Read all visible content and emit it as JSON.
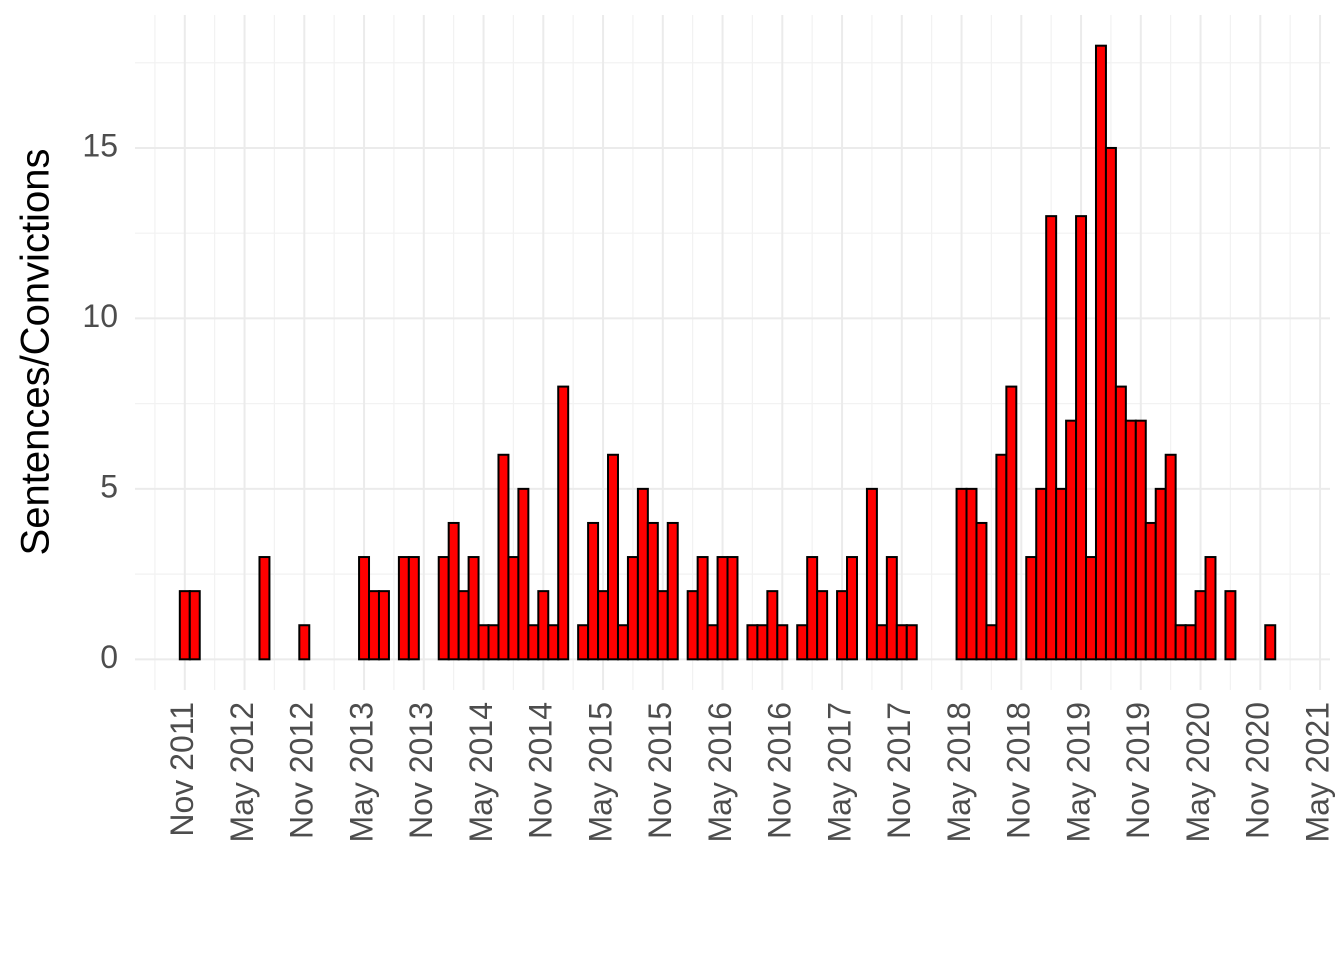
{
  "chart_data": {
    "type": "bar",
    "y_label": "Sentences/Convictions",
    "x": [
      "2011-11",
      "2011-12",
      "2012-07",
      "2012-11",
      "2013-05",
      "2013-06",
      "2013-07",
      "2013-09",
      "2013-10",
      "2014-01",
      "2014-02",
      "2014-03",
      "2014-04",
      "2014-05",
      "2014-06",
      "2014-07",
      "2014-08",
      "2014-09",
      "2014-10",
      "2014-11",
      "2014-12",
      "2015-01",
      "2015-03",
      "2015-04",
      "2015-05",
      "2015-06",
      "2015-07",
      "2015-08",
      "2015-09",
      "2015-10",
      "2015-11",
      "2015-12",
      "2016-02",
      "2016-03",
      "2016-04",
      "2016-05",
      "2016-06",
      "2016-08",
      "2016-09",
      "2016-10",
      "2016-11",
      "2017-01",
      "2017-02",
      "2017-03",
      "2017-05",
      "2017-06",
      "2017-08",
      "2017-09",
      "2017-10",
      "2017-11",
      "2017-12",
      "2018-05",
      "2018-06",
      "2018-07",
      "2018-08",
      "2018-09",
      "2018-10",
      "2018-12",
      "2019-01",
      "2019-02",
      "2019-03",
      "2019-04",
      "2019-05",
      "2019-06",
      "2019-07",
      "2019-08",
      "2019-09",
      "2019-10",
      "2019-11",
      "2019-12",
      "2020-01",
      "2020-02",
      "2020-03",
      "2020-04",
      "2020-05",
      "2020-06",
      "2020-08",
      "2020-12"
    ],
    "values": [
      2,
      2,
      3,
      1,
      3,
      2,
      2,
      3,
      3,
      3,
      4,
      2,
      3,
      1,
      1,
      6,
      3,
      5,
      1,
      2,
      1,
      8,
      1,
      4,
      2,
      6,
      1,
      3,
      5,
      4,
      2,
      4,
      2,
      3,
      1,
      3,
      3,
      1,
      1,
      2,
      1,
      1,
      3,
      2,
      2,
      3,
      5,
      1,
      3,
      1,
      1,
      5,
      5,
      4,
      1,
      6,
      8,
      3,
      5,
      13,
      5,
      7,
      13,
      3,
      18,
      15,
      8,
      7,
      7,
      4,
      5,
      6,
      1,
      1,
      2,
      3,
      2,
      1
    ],
    "color": "#ff0000",
    "edgecolor": "#000000",
    "xlim": [
      "2011-06",
      "2021-06"
    ],
    "xticks": [
      {
        "value": "2011-11",
        "label": "Nov 2011"
      },
      {
        "value": "2012-05",
        "label": "May 2012"
      },
      {
        "value": "2012-11",
        "label": "Nov 2012"
      },
      {
        "value": "2013-05",
        "label": "May 2013"
      },
      {
        "value": "2013-11",
        "label": "Nov 2013"
      },
      {
        "value": "2014-05",
        "label": "May 2014"
      },
      {
        "value": "2014-11",
        "label": "Nov 2014"
      },
      {
        "value": "2015-05",
        "label": "May 2015"
      },
      {
        "value": "2015-11",
        "label": "Nov 2015"
      },
      {
        "value": "2016-05",
        "label": "May 2016"
      },
      {
        "value": "2016-11",
        "label": "Nov 2016"
      },
      {
        "value": "2017-05",
        "label": "May 2017"
      },
      {
        "value": "2017-11",
        "label": "Nov 2017"
      },
      {
        "value": "2018-05",
        "label": "May 2018"
      },
      {
        "value": "2018-11",
        "label": "Nov 2018"
      },
      {
        "value": "2019-05",
        "label": "May 2019"
      },
      {
        "value": "2019-11",
        "label": "Nov 2019"
      },
      {
        "value": "2020-05",
        "label": "May 2020"
      },
      {
        "value": "2020-11",
        "label": "Nov 2020"
      },
      {
        "value": "2021-05",
        "label": "May 2021"
      }
    ],
    "ylim": [
      -0.9,
      18.9
    ],
    "yticks": [
      0,
      5,
      10,
      15
    ],
    "grid": true
  }
}
